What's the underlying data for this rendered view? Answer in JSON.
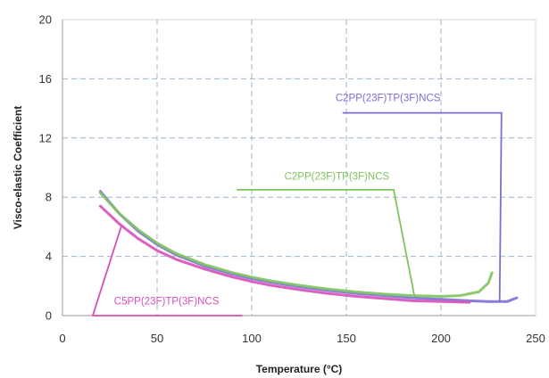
{
  "chart_data": {
    "type": "line",
    "title": "",
    "xlabel": "Temperature (°C)",
    "ylabel": "Visco-elastic Coefficient",
    "xlim": [
      0,
      250
    ],
    "ylim": [
      0,
      20
    ],
    "xticks": [
      0,
      50,
      100,
      150,
      200,
      250
    ],
    "yticks": [
      0,
      4,
      8,
      12,
      16,
      20
    ],
    "grid": true,
    "legend": "none",
    "series": [
      {
        "name": "",
        "color": "#7b6fd6",
        "x": [
          20,
          30,
          40,
          50,
          60,
          75,
          90,
          100,
          110,
          125,
          140,
          155,
          170,
          185,
          200,
          215,
          225,
          235,
          240
        ],
        "y": [
          8.4,
          6.9,
          5.7,
          4.8,
          4.1,
          3.35,
          2.8,
          2.5,
          2.25,
          1.95,
          1.7,
          1.5,
          1.35,
          1.2,
          1.1,
          1.0,
          0.95,
          0.95,
          1.2
        ]
      },
      {
        "name": "",
        "color": "#7fc45f",
        "x": [
          20,
          30,
          40,
          50,
          60,
          75,
          90,
          100,
          110,
          125,
          140,
          155,
          170,
          185,
          200,
          210,
          220,
          225,
          227
        ],
        "y": [
          8.3,
          6.9,
          5.8,
          4.9,
          4.2,
          3.45,
          2.9,
          2.6,
          2.35,
          2.05,
          1.8,
          1.6,
          1.45,
          1.35,
          1.3,
          1.35,
          1.6,
          2.2,
          2.9
        ]
      },
      {
        "name": "",
        "color": "#d74fb8",
        "x": [
          20,
          30,
          40,
          50,
          60,
          75,
          90,
          100,
          110,
          125,
          140,
          155,
          170,
          185,
          200,
          215
        ],
        "y": [
          7.4,
          6.2,
          5.2,
          4.4,
          3.8,
          3.15,
          2.6,
          2.3,
          2.05,
          1.75,
          1.5,
          1.3,
          1.15,
          1.0,
          0.95,
          0.9
        ]
      }
    ],
    "annotations": [
      {
        "text": "C2PP(23F)TP(3F)NCS",
        "color": "#7b6fd6",
        "text_at": [
          172,
          14.5
        ],
        "line_path": [
          [
            148,
            13.7
          ],
          [
            232,
            13.7
          ],
          [
            231,
            0.9
          ]
        ]
      },
      {
        "text": "C2PP(23F)TP(3F)NCS",
        "color": "#7fc45f",
        "text_at": [
          145,
          9.2
        ],
        "line_path": [
          [
            92,
            8.5
          ],
          [
            175,
            8.5
          ],
          [
            186,
            1.3
          ]
        ]
      },
      {
        "text": "C5PP(23F)TP(3F)NCS",
        "color": "#d74fb8",
        "text_at": [
          55,
          0.75
        ],
        "line_path": [
          [
            31,
            6.0
          ],
          [
            16,
            0.0
          ],
          [
            95,
            0.0
          ]
        ]
      }
    ]
  }
}
